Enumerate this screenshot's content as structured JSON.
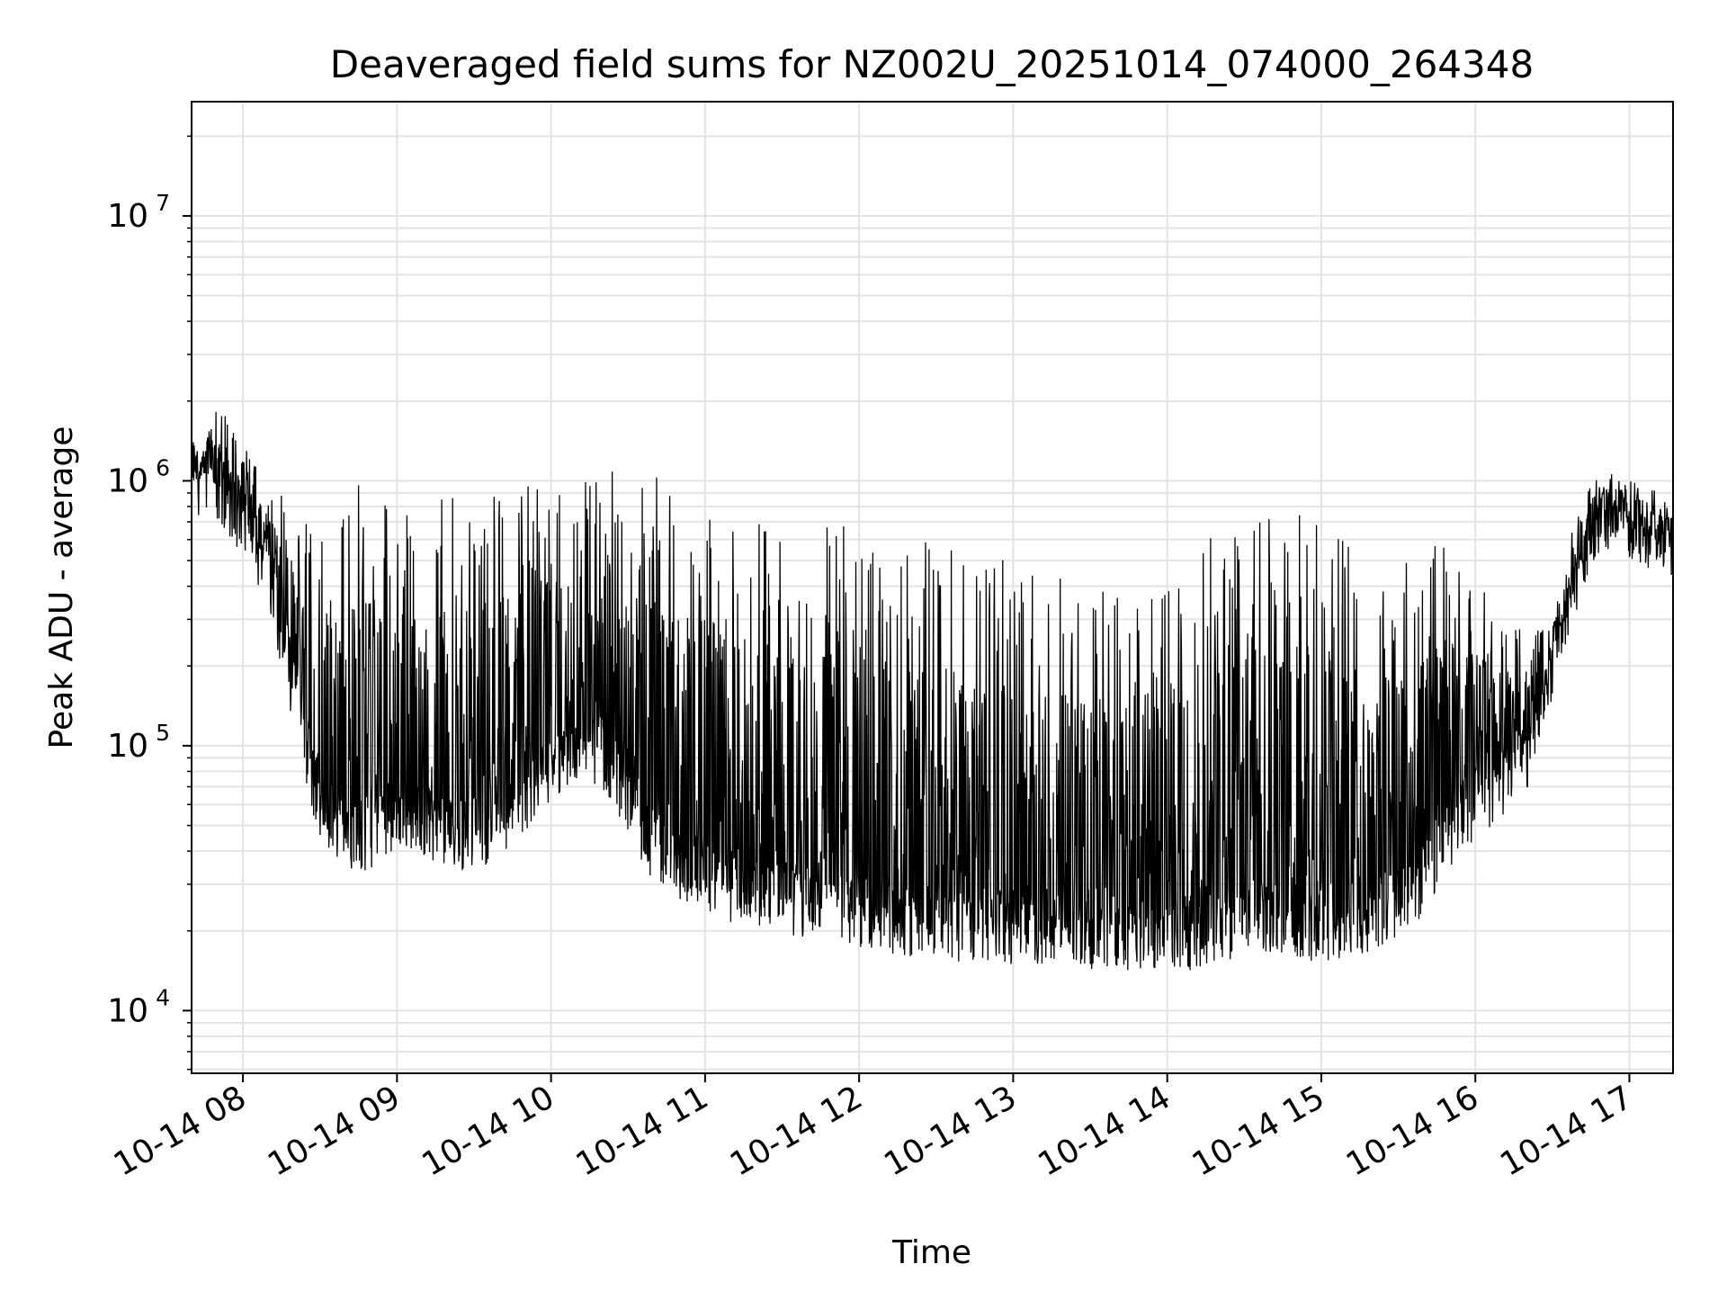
{
  "chart_data": {
    "type": "line",
    "title": "Deaveraged field sums for NZ002U_20251014_074000_264348",
    "xlabel": "Time",
    "ylabel": "Peak ADU - average",
    "yscale": "log",
    "grid": true,
    "xlim": [
      "2025-10-14 07:40",
      "2025-10-14 17:17"
    ],
    "ylim": [
      5800,
      27000000
    ],
    "x_tick_labels": [
      "10-14 08",
      "10-14 09",
      "10-14 10",
      "10-14 11",
      "10-14 12",
      "10-14 13",
      "10-14 14",
      "10-14 15",
      "10-14 16",
      "10-14 17"
    ],
    "y_ticks": [
      {
        "value": 10000,
        "base": "10",
        "exp": "4"
      },
      {
        "value": 100000,
        "base": "10",
        "exp": "5"
      },
      {
        "value": 1000000,
        "base": "10",
        "exp": "6"
      },
      {
        "value": 10000000,
        "base": "10",
        "exp": "7"
      }
    ],
    "line_color": "#000000",
    "grid_color": "#e3e3e3",
    "series": [
      {
        "x": [
          "2025-10-14 07:40",
          "2025-10-14 07:50",
          "2025-10-14 08:00",
          "2025-10-14 08:10",
          "2025-10-14 08:20",
          "2025-10-14 08:30",
          "2025-10-14 08:40",
          "2025-10-14 08:50",
          "2025-10-14 09:00",
          "2025-10-14 09:10",
          "2025-10-14 09:20",
          "2025-10-14 09:30",
          "2025-10-14 09:40",
          "2025-10-14 09:50",
          "2025-10-14 10:00",
          "2025-10-14 10:10",
          "2025-10-14 10:20",
          "2025-10-14 10:30",
          "2025-10-14 10:40",
          "2025-10-14 10:50",
          "2025-10-14 11:00",
          "2025-10-14 11:10",
          "2025-10-14 11:20",
          "2025-10-14 11:30",
          "2025-10-14 11:40",
          "2025-10-14 11:50",
          "2025-10-14 12:00",
          "2025-10-14 12:10",
          "2025-10-14 12:20",
          "2025-10-14 12:30",
          "2025-10-14 12:40",
          "2025-10-14 12:50",
          "2025-10-14 13:00",
          "2025-10-14 13:10",
          "2025-10-14 13:20",
          "2025-10-14 13:30",
          "2025-10-14 13:40",
          "2025-10-14 13:50",
          "2025-10-14 14:00",
          "2025-10-14 14:10",
          "2025-10-14 14:20",
          "2025-10-14 14:30",
          "2025-10-14 14:40",
          "2025-10-14 14:50",
          "2025-10-14 15:00",
          "2025-10-14 15:10",
          "2025-10-14 15:20",
          "2025-10-14 15:30",
          "2025-10-14 15:40",
          "2025-10-14 15:50",
          "2025-10-14 16:00",
          "2025-10-14 16:10",
          "2025-10-14 16:20",
          "2025-10-14 16:30",
          "2025-10-14 16:40",
          "2025-10-14 16:50",
          "2025-10-14 17:00",
          "2025-10-14 17:10",
          "2025-10-14 17:17"
        ],
        "baseline": [
          1000000,
          950000,
          700000,
          450000,
          150000,
          55000,
          45000,
          45000,
          50000,
          50000,
          45000,
          45000,
          50000,
          60000,
          80000,
          100000,
          90000,
          60000,
          40000,
          35000,
          32000,
          28000,
          27000,
          26000,
          25000,
          24000,
          23000,
          22000,
          21000,
          21000,
          20000,
          20000,
          20000,
          20000,
          19000,
          19000,
          19000,
          19000,
          19000,
          19000,
          20000,
          22000,
          22000,
          21000,
          20000,
          20000,
          22000,
          25000,
          30000,
          45000,
          60000,
          70000,
          90000,
          200000,
          450000,
          750000,
          650000,
          600000,
          580000
        ],
        "peak": [
          1300000,
          1800000,
          1500000,
          1000000,
          700000,
          600000,
          800000,
          900000,
          700000,
          650000,
          800000,
          850000,
          850000,
          900000,
          950000,
          1000000,
          1000000,
          950000,
          900000,
          800000,
          750000,
          650000,
          600000,
          550000,
          550000,
          600000,
          600000,
          550000,
          500000,
          500000,
          450000,
          450000,
          450000,
          400000,
          400000,
          350000,
          350000,
          350000,
          350000,
          450000,
          550000,
          600000,
          700000,
          650000,
          600000,
          550000,
          500000,
          450000,
          500000,
          550000,
          400000,
          300000,
          250000,
          300000,
          800000,
          1100000,
          1000000,
          900000,
          800000
        ]
      }
    ]
  }
}
